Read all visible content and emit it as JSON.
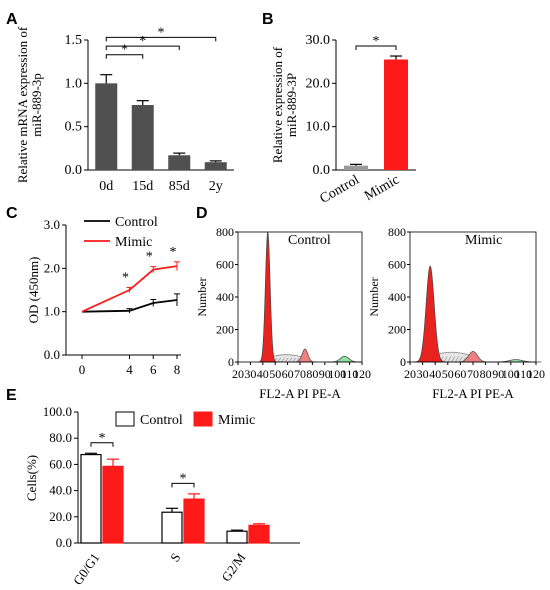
{
  "colors": {
    "dark_bar": "#505050",
    "red": "#ff1a1a",
    "black": "#000000",
    "control_fill": "#ffffff",
    "peak_red": "#e8231f",
    "peak_pink": "#f08080",
    "peak_green": "#90e0a0",
    "hatch": "#888888"
  },
  "panel_labels": [
    "A",
    "B",
    "C",
    "D",
    "E"
  ],
  "chart_data": [
    {
      "panel": "A",
      "type": "bar",
      "ylabel": "Relative mRNA expression of miR-889-3p",
      "ylabel_lines": [
        "Relative mRNA expression of",
        "miR-889-3p"
      ],
      "categories": [
        "0d",
        "15d",
        "85d",
        "2y"
      ],
      "values": [
        1.0,
        0.75,
        0.17,
        0.09
      ],
      "errors": [
        0.1,
        0.05,
        0.025,
        0.015
      ],
      "ylim": [
        0,
        1.5
      ],
      "yticks": [
        "0.0",
        "0.5",
        "1.0",
        "1.5"
      ],
      "significance": [
        {
          "from": "0d",
          "to": "15d",
          "label": "*"
        },
        {
          "from": "0d",
          "to": "85d",
          "label": "*"
        },
        {
          "from": "0d",
          "to": "2y",
          "label": "*"
        }
      ],
      "color": "#505050"
    },
    {
      "panel": "B",
      "type": "bar",
      "ylabel": "Relative expression of miR-889-3P",
      "ylabel_lines": [
        "Relative expression of",
        "miR-889-3P"
      ],
      "categories": [
        "Control",
        "Mimic"
      ],
      "values": [
        1.0,
        25.5
      ],
      "errors": [
        0.3,
        0.8
      ],
      "colors": [
        "#999999",
        "#ff1a1a"
      ],
      "ylim": [
        0,
        30
      ],
      "yticks": [
        "0.0",
        "10.0",
        "20.0",
        "30.0"
      ],
      "significance": [
        {
          "from": "Control",
          "to": "Mimic",
          "label": "*"
        }
      ]
    },
    {
      "panel": "C",
      "type": "line",
      "ylabel": "OD (450nm)",
      "x": [
        0,
        4,
        6,
        8
      ],
      "xticks": [
        "0",
        "4",
        "6",
        "8"
      ],
      "xlim": [
        0,
        8
      ],
      "ylim": [
        0,
        3
      ],
      "yticks": [
        "0.0",
        "1.0",
        "2.0",
        "3.0"
      ],
      "series": [
        {
          "name": "Control",
          "values": [
            1.0,
            1.02,
            1.2,
            1.27
          ],
          "errors": [
            0,
            0.05,
            0.08,
            0.14
          ],
          "color": "#000000"
        },
        {
          "name": "Mimic",
          "values": [
            1.0,
            1.5,
            1.97,
            2.05
          ],
          "errors": [
            0,
            0.06,
            0.07,
            0.1
          ],
          "color": "#ff1a1a"
        }
      ],
      "significance_x": [
        4,
        6,
        8
      ],
      "significance_label": "*",
      "legend": "top-left"
    },
    {
      "panel": "D",
      "type": "area",
      "subplots": [
        {
          "title": "Control",
          "xlabel": "FL2-A PI PE-A",
          "ylabel": "Number",
          "xlim": [
            20,
            120
          ],
          "ylim": [
            0,
            800
          ],
          "xticks": [
            "20",
            "30",
            "40",
            "50",
            "60",
            "70",
            "80",
            "90",
            "100",
            "110",
            "120"
          ],
          "yticks": [
            "0",
            "200",
            "400",
            "600",
            "800"
          ],
          "g1_peak": {
            "center": 44,
            "height": 800,
            "width": 1.9
          },
          "g2_peak": {
            "center": 74,
            "height": 80,
            "width": 2.3
          },
          "s_phase_height": 45,
          "extra_peak": {
            "center": 106,
            "height": 35,
            "width": 3.5
          }
        },
        {
          "title": "Mimic",
          "xlabel": "FL2-A PI PE-A",
          "ylabel": "Number",
          "xlim": [
            20,
            120
          ],
          "ylim": [
            0,
            800
          ],
          "xticks": [
            "20",
            "30",
            "40",
            "50",
            "60",
            "70",
            "80",
            "90",
            "100",
            "110",
            "120"
          ],
          "yticks": [
            "0",
            "200",
            "400",
            "600",
            "800"
          ],
          "g1_peak": {
            "center": 36,
            "height": 590,
            "width": 3.2
          },
          "g2_peak": {
            "center": 70,
            "height": 65,
            "width": 3.5
          },
          "s_phase_height": 60,
          "extra_peak": {
            "center": 104,
            "height": 15,
            "width": 5
          }
        }
      ]
    },
    {
      "panel": "E",
      "type": "bar",
      "ylabel": "Cells(%)",
      "categories": [
        "G0/G1",
        "S",
        "G2/M"
      ],
      "series": [
        {
          "name": "Control",
          "values": [
            67.5,
            23.5,
            9.0
          ],
          "errors": [
            1.0,
            3.0,
            0.8
          ],
          "fill": "#ffffff",
          "stroke": "#000000"
        },
        {
          "name": "Mimic",
          "values": [
            58.5,
            33.5,
            13.5
          ],
          "errors": [
            5.5,
            4.0,
            1.2
          ],
          "fill": "#ff1a1a",
          "stroke": "#ff1a1a"
        }
      ],
      "ylim": [
        0,
        100
      ],
      "yticks": [
        "0.0",
        "20.0",
        "40.0",
        "60.0",
        "80.0",
        "100.0"
      ],
      "significance": [
        {
          "category": "G0/G1",
          "label": "*"
        },
        {
          "category": "S",
          "label": "*"
        }
      ],
      "legend": "top"
    }
  ]
}
